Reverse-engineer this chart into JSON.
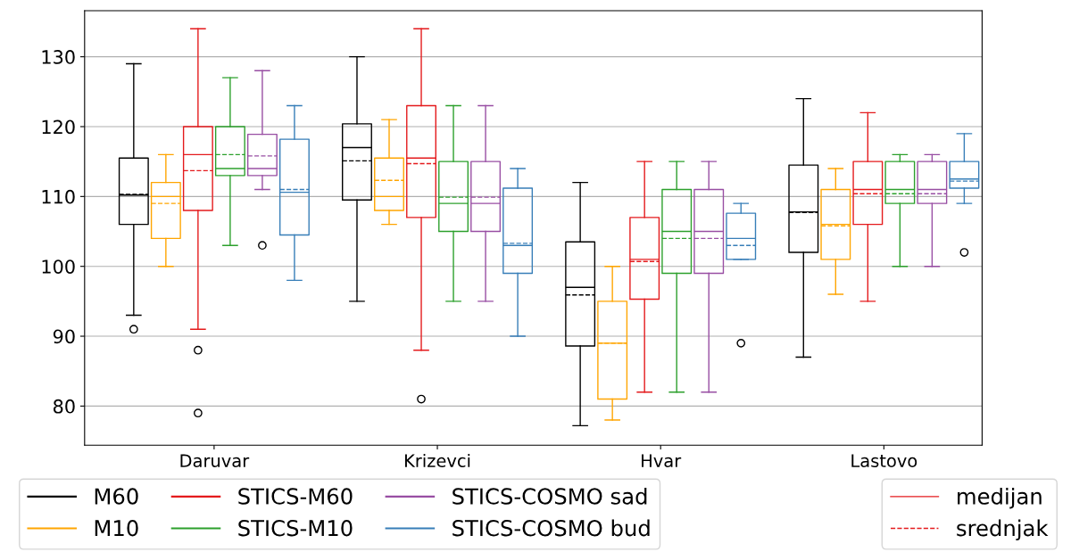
{
  "chart_data": {
    "type": "box",
    "categories": [
      "Daruvar",
      "Krizevci",
      "Hvar",
      "Lastovo"
    ],
    "ylim": [
      74.4,
      136.6
    ],
    "yticks": [
      80,
      90,
      100,
      110,
      120,
      130
    ],
    "grid": "y",
    "legend": "bottom",
    "annotations": [
      "medijan",
      "srednjak"
    ],
    "series": [
      {
        "name": "M60",
        "color": "#000000",
        "boxes": [
          {
            "low": 93,
            "q1": 106,
            "median": 110.2,
            "q3": 115.5,
            "high": 129,
            "mean": 110.3,
            "outliers": [
              91
            ]
          },
          {
            "low": 95,
            "q1": 109.5,
            "median": 117,
            "q3": 120.4,
            "high": 130,
            "mean": 115.1
          },
          {
            "low": 77.2,
            "q1": 88.6,
            "median": 97,
            "q3": 103.5,
            "high": 112,
            "mean": 95.9
          },
          {
            "low": 87,
            "q1": 102,
            "median": 107.8,
            "q3": 114.5,
            "high": 124,
            "mean": 107.7
          }
        ]
      },
      {
        "name": "M10",
        "color": "#ffa500",
        "boxes": [
          {
            "low": 100,
            "q1": 104,
            "median": 110,
            "q3": 112,
            "high": 116,
            "mean": 109
          },
          {
            "low": 106,
            "q1": 108,
            "median": 110,
            "q3": 115.5,
            "high": 121,
            "mean": 112.3
          },
          {
            "low": 78,
            "q1": 81,
            "median": 89,
            "q3": 95,
            "high": 100,
            "mean": 89
          },
          {
            "low": 96,
            "q1": 101,
            "median": 106,
            "q3": 111,
            "high": 114,
            "mean": 105.8
          }
        ]
      },
      {
        "name": "STICS-M60",
        "color": "#e41a1c",
        "boxes": [
          {
            "low": 91,
            "q1": 108,
            "median": 116,
            "q3": 120,
            "high": 134,
            "mean": 113.7,
            "outliers": [
              88,
              79
            ]
          },
          {
            "low": 88,
            "q1": 107,
            "median": 115.5,
            "q3": 123,
            "high": 134,
            "mean": 114.7,
            "outliers": [
              81
            ]
          },
          {
            "low": 82,
            "q1": 95.3,
            "median": 101,
            "q3": 107,
            "high": 115,
            "mean": 100.7
          },
          {
            "low": 95,
            "q1": 106,
            "median": 111,
            "q3": 115,
            "high": 122,
            "mean": 110.4
          }
        ]
      },
      {
        "name": "STICS-M10",
        "color": "#2ca02c",
        "boxes": [
          {
            "low": 103,
            "q1": 113,
            "median": 114,
            "q3": 120,
            "high": 127,
            "mean": 116
          },
          {
            "low": 95,
            "q1": 105,
            "median": 109,
            "q3": 115,
            "high": 123,
            "mean": 109.9
          },
          {
            "low": 82,
            "q1": 99,
            "median": 105,
            "q3": 111,
            "high": 115,
            "mean": 104
          },
          {
            "low": 100,
            "q1": 109,
            "median": 111,
            "q3": 115,
            "high": 116,
            "mean": 110.4
          }
        ]
      },
      {
        "name": "STICS-COSMO sad",
        "color": "#984ea3",
        "boxes": [
          {
            "low": 111,
            "q1": 113,
            "median": 114,
            "q3": 118.9,
            "high": 128,
            "mean": 115.8,
            "outliers": [
              103
            ]
          },
          {
            "low": 95,
            "q1": 105,
            "median": 109,
            "q3": 115,
            "high": 123,
            "mean": 109.9
          },
          {
            "low": 82,
            "q1": 99,
            "median": 105,
            "q3": 111,
            "high": 115,
            "mean": 104
          },
          {
            "low": 100,
            "q1": 109,
            "median": 111,
            "q3": 115,
            "high": 116,
            "mean": 110.4
          }
        ]
      },
      {
        "name": "STICS-COSMO bud",
        "color": "#377eb8",
        "boxes": [
          {
            "low": 98,
            "q1": 104.5,
            "median": 110.6,
            "q3": 118.2,
            "high": 123,
            "mean": 111
          },
          {
            "low": 90,
            "q1": 99,
            "median": 103,
            "q3": 111.2,
            "high": 114,
            "mean": 103.3
          },
          {
            "low": 101,
            "q1": 101,
            "median": 104,
            "q3": 107.6,
            "high": 109,
            "mean": 103,
            "outliers": [
              89
            ]
          },
          {
            "low": 109,
            "q1": 111.2,
            "median": 112.5,
            "q3": 115,
            "high": 119,
            "mean": 112.2,
            "outliers": [
              102
            ]
          }
        ]
      }
    ]
  }
}
